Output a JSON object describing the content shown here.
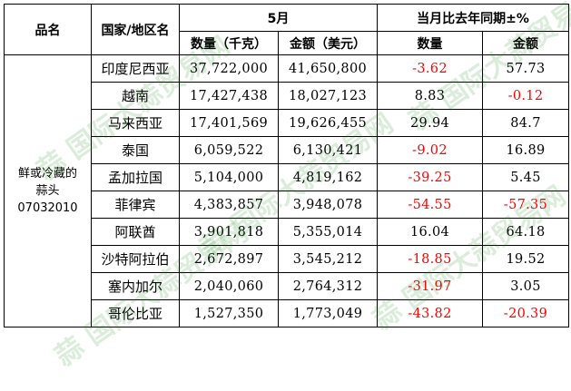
{
  "header": {
    "product": "品名",
    "region": "国家/地区名",
    "month": "5月",
    "yoy": "当月比去年同期±%",
    "qty": "数量（千克）",
    "amount": "金额（美元）",
    "yoy_qty": "数量",
    "yoy_amount": "金额"
  },
  "product": {
    "line1": "鲜或冷藏的",
    "line2": "蒜头",
    "code": "07032010"
  },
  "rows": [
    {
      "country": "印度尼西亚",
      "qty": "37,722,000",
      "amount": "41,650,800",
      "yoy_qty": "-3.62",
      "yoy_amount": "57.73"
    },
    {
      "country": "越南",
      "qty": "17,427,438",
      "amount": "18,027,123",
      "yoy_qty": "8.83",
      "yoy_amount": "-0.12"
    },
    {
      "country": "马来西亚",
      "qty": "17,401,569",
      "amount": "19,626,455",
      "yoy_qty": "29.94",
      "yoy_amount": "84.7"
    },
    {
      "country": "泰国",
      "qty": "6,059,522",
      "amount": "6,130,421",
      "yoy_qty": "-9.02",
      "yoy_amount": "16.89"
    },
    {
      "country": "孟加拉国",
      "qty": "5,104,000",
      "amount": "4,819,162",
      "yoy_qty": "-39.25",
      "yoy_amount": "5.45"
    },
    {
      "country": "菲律宾",
      "qty": "4,383,857",
      "amount": "3,948,078",
      "yoy_qty": "-54.55",
      "yoy_amount": "-57.35"
    },
    {
      "country": "阿联酋",
      "qty": "3,901,818",
      "amount": "5,355,014",
      "yoy_qty": "16.04",
      "yoy_amount": "64.18"
    },
    {
      "country": "沙特阿拉伯",
      "qty": "2,672,897",
      "amount": "3,545,212",
      "yoy_qty": "-18.85",
      "yoy_amount": "19.52"
    },
    {
      "country": "塞内加尔",
      "qty": "2,040,060",
      "amount": "2,764,312",
      "yoy_qty": "-31.97",
      "yoy_amount": "3.05"
    },
    {
      "country": "哥伦比亚",
      "qty": "1,527,350",
      "amount": "1,773,049",
      "yoy_qty": "-43.82",
      "yoy_amount": "-20.39"
    }
  ],
  "watermark": {
    "text": "蒜 国际大蒜贸易网",
    "color": "#228b22"
  },
  "colors": {
    "negative": "#ff0000",
    "positive": "#000000"
  }
}
